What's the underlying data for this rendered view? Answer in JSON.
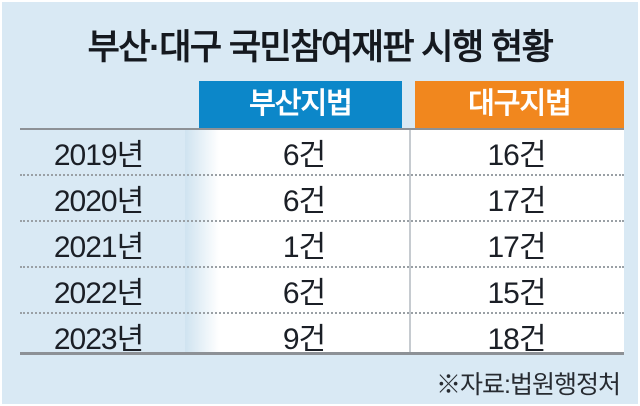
{
  "title": "부산·대구 국민참여재판 시행 현황",
  "source_note": "※자료:법원행정처",
  "colors": {
    "panel_bg": "#d9e9f4",
    "busan_header_bg": "#0c87c9",
    "daegu_header_bg": "#f1871e",
    "header_text": "#ffffff",
    "body_text": "#1b1f26",
    "solid_line_gray": "#8d9196",
    "dotted_line_gray": "#9aa0a5",
    "column_divider_gray": "#c6cbd0"
  },
  "table": {
    "headers": {
      "busan": "부산지법",
      "daegu": "대구지법"
    },
    "rows": [
      {
        "year": "2019년",
        "busan": "6건",
        "daegu": "16건"
      },
      {
        "year": "2020년",
        "busan": "6건",
        "daegu": "17건"
      },
      {
        "year": "2021년",
        "busan": "1건",
        "daegu": "17건"
      },
      {
        "year": "2022년",
        "busan": "6건",
        "daegu": "15건"
      },
      {
        "year": "2023년",
        "busan": "9건",
        "daegu": "18건"
      }
    ]
  },
  "chart_data": {
    "type": "table",
    "title": "부산·대구 국민참여재판 시행 현황",
    "categories": [
      "2019년",
      "2020년",
      "2021년",
      "2022년",
      "2023년"
    ],
    "series": [
      {
        "name": "부산지법",
        "values": [
          6,
          6,
          1,
          6,
          9
        ]
      },
      {
        "name": "대구지법",
        "values": [
          16,
          17,
          17,
          15,
          18
        ]
      }
    ],
    "unit": "건",
    "source": "※자료:법원행정처",
    "legend_position": "top",
    "grid": "dotted-row-separators"
  }
}
